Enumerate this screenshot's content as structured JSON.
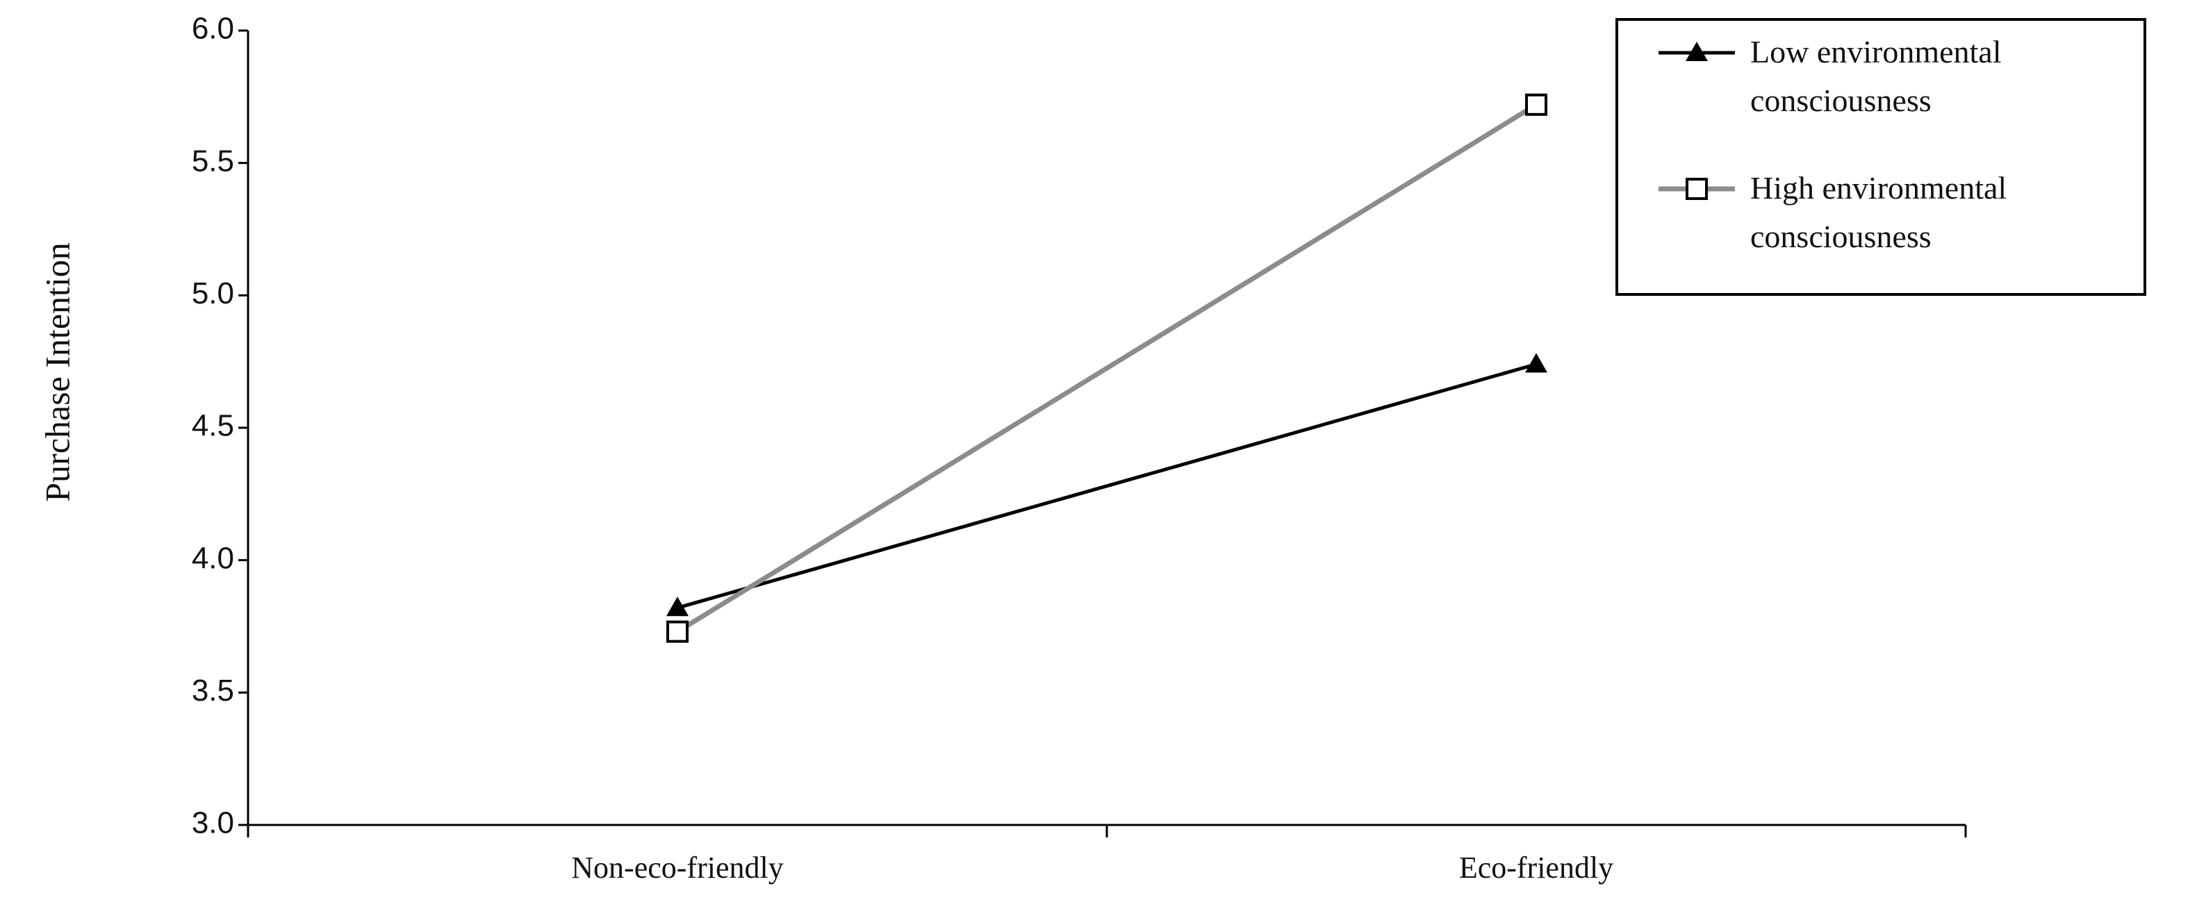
{
  "chart_data": {
    "type": "line",
    "y_label": "Purchase Intention",
    "categories": [
      "Non-eco-friendly",
      "Eco-friendly"
    ],
    "series": [
      {
        "name": "Low environmental consciousness",
        "color": "#000000",
        "marker": "triangle",
        "values": [
          3.82,
          4.74
        ]
      },
      {
        "name": "High environmental consciousness",
        "color": "#8c8c8c",
        "marker": "square",
        "values": [
          3.73,
          5.72
        ]
      }
    ],
    "ylim": [
      3.0,
      6.0
    ],
    "yticks": [
      {
        "value": 3.0,
        "label": "3.0"
      },
      {
        "value": 3.5,
        "label": "3.5"
      },
      {
        "value": 4.0,
        "label": "4.0"
      },
      {
        "value": 4.5,
        "label": "4.5"
      },
      {
        "value": 5.0,
        "label": "5.0"
      },
      {
        "value": 5.5,
        "label": "5.5"
      },
      {
        "value": 6.0,
        "label": "6.0"
      }
    ],
    "legend": "upper right"
  }
}
